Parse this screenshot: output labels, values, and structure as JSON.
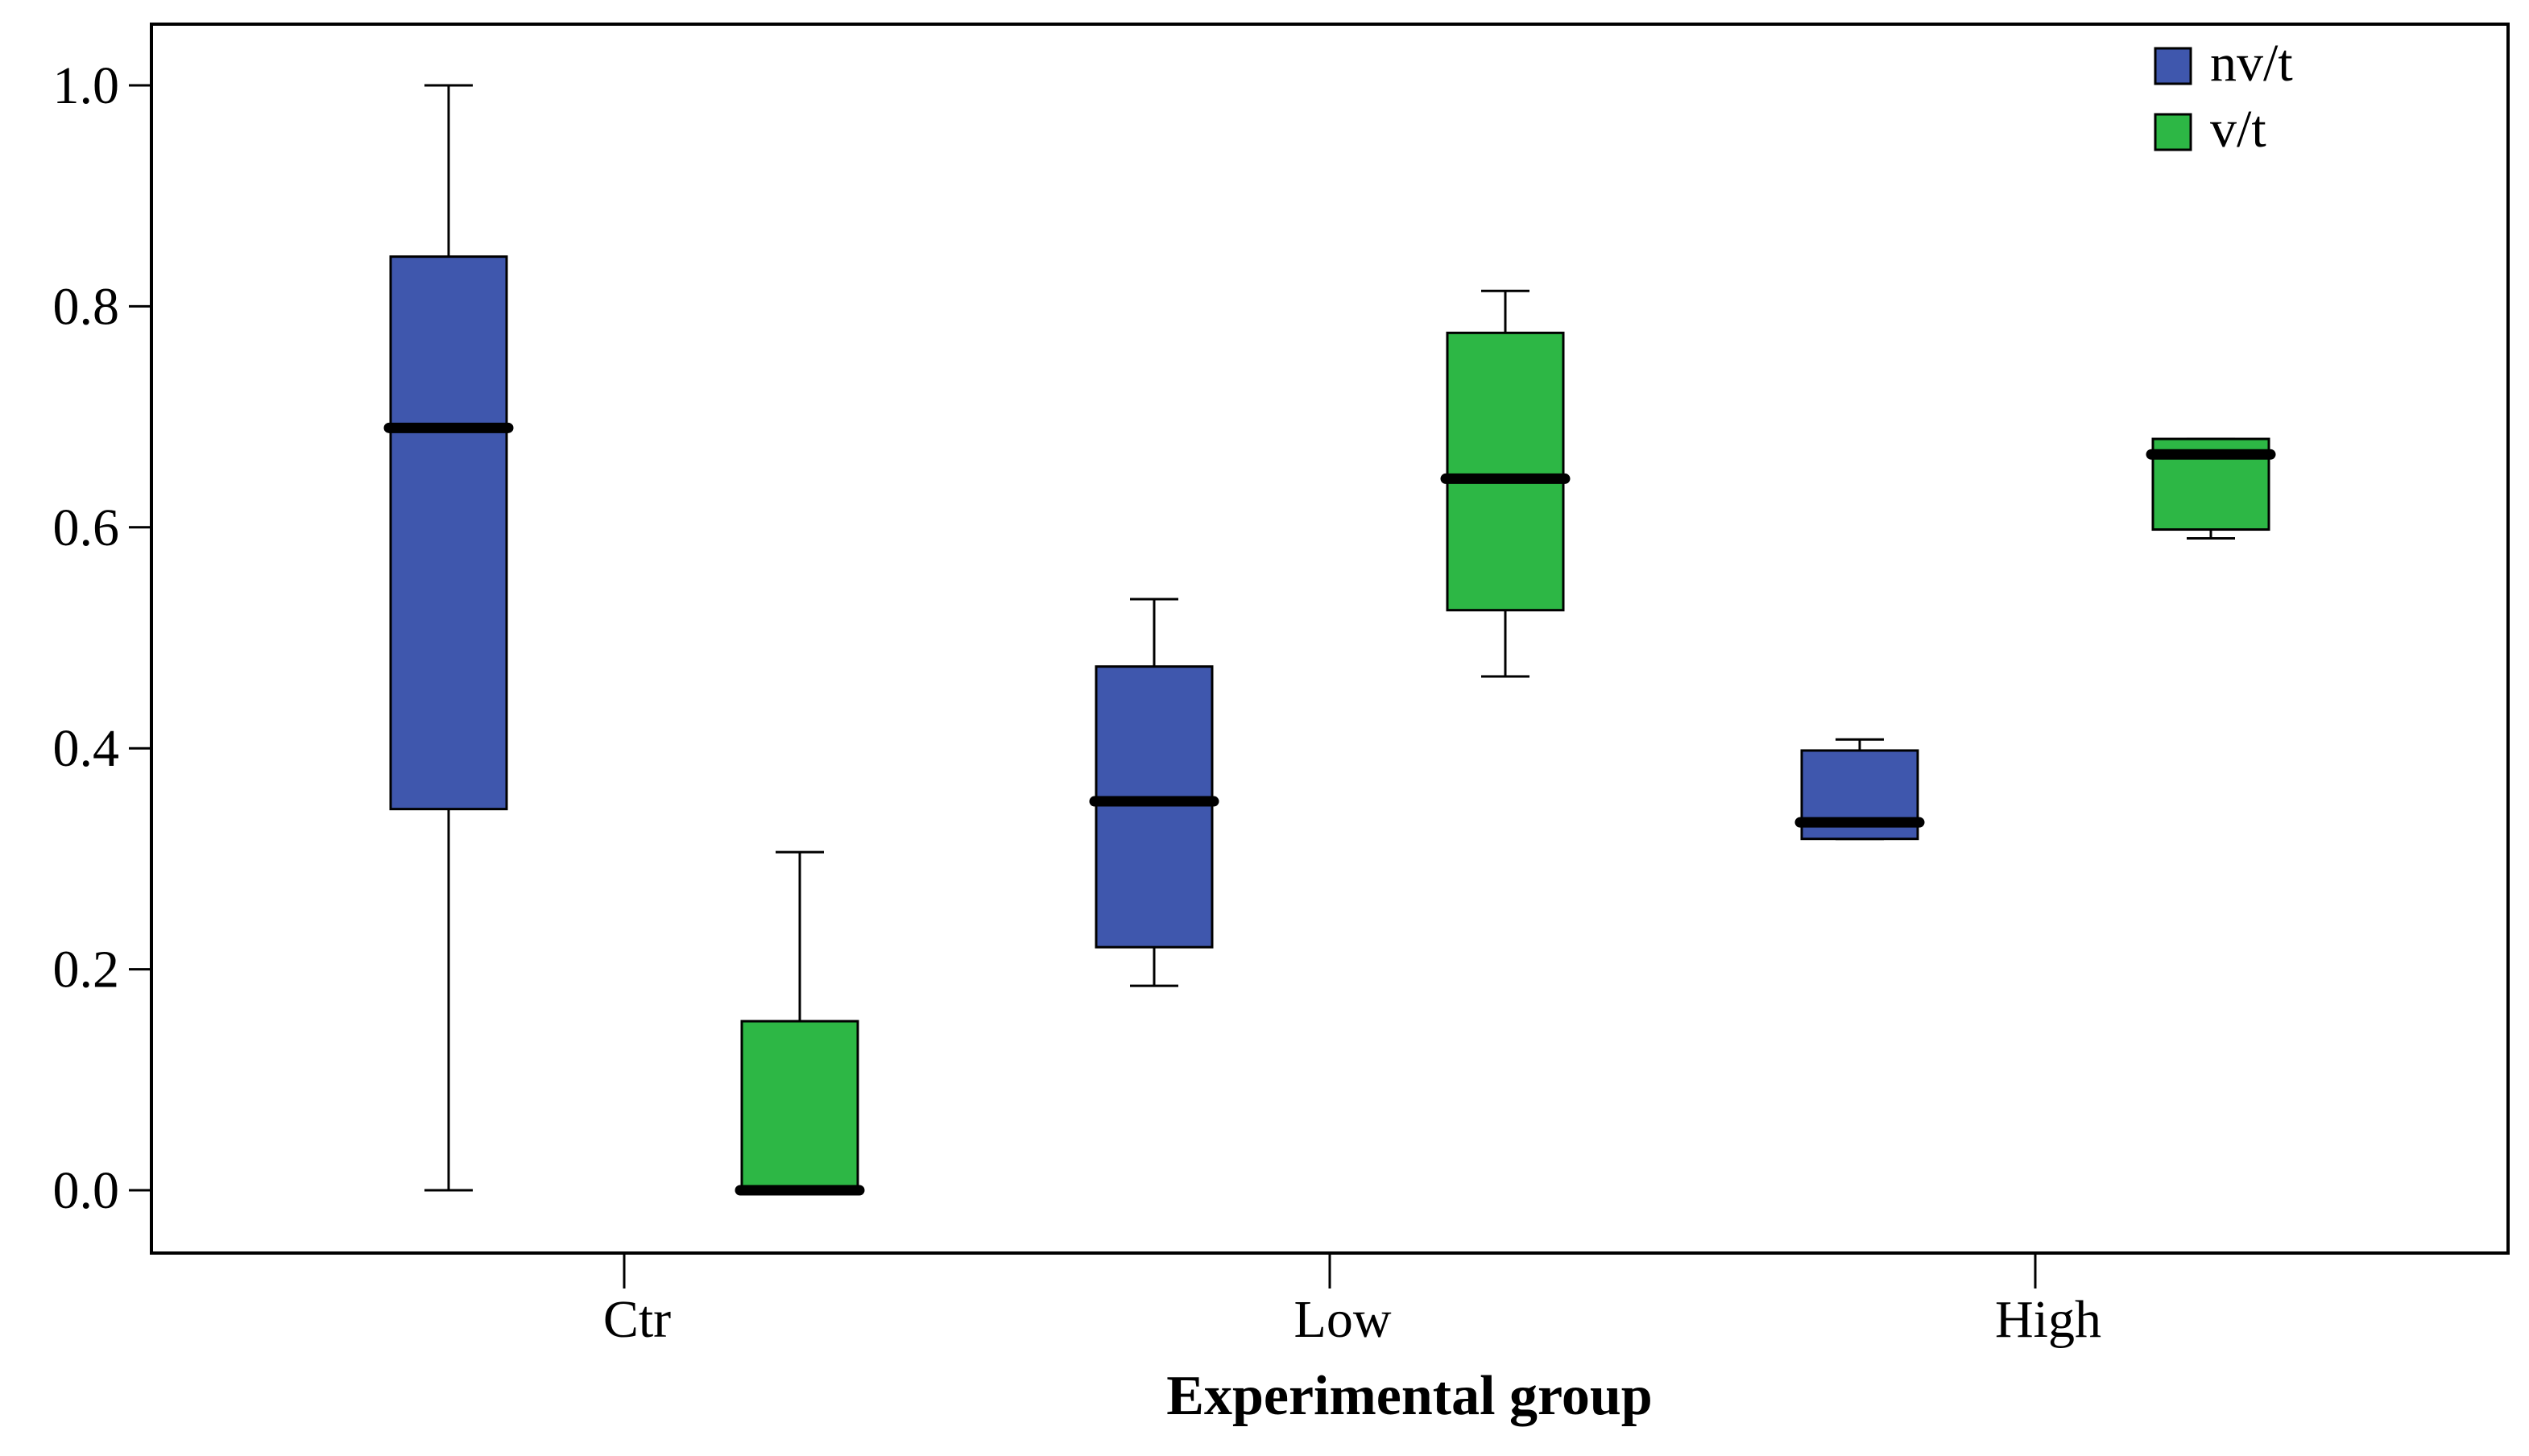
{
  "chart_data": {
    "type": "boxplot",
    "title": "",
    "xlabel": "Experimental group",
    "ylabel": "",
    "categories": [
      "Ctr",
      "Low",
      "High"
    ],
    "ylim": [
      -0.055,
      1.055
    ],
    "yticks": [
      0.0,
      0.2,
      0.4,
      0.6,
      0.8,
      1.0
    ],
    "ytick_labels": [
      "0.0",
      "0.2",
      "0.4",
      "0.6",
      "0.8",
      "1.0"
    ],
    "grid": false,
    "legend_position": "top-right",
    "series": [
      {
        "name": "nv/t",
        "color": "#3f57ad",
        "boxes": [
          {
            "category": "Ctr",
            "whisker_low": 0.0,
            "q1": 0.345,
            "median": 0.69,
            "q3": 0.845,
            "whisker_high": 1.0
          },
          {
            "category": "Low",
            "whisker_low": 0.185,
            "q1": 0.22,
            "median": 0.352,
            "q3": 0.474,
            "whisker_high": 0.535
          },
          {
            "category": "High",
            "whisker_low": 0.318,
            "q1": 0.318,
            "median": 0.333,
            "q3": 0.398,
            "whisker_high": 0.408
          }
        ]
      },
      {
        "name": "v/t",
        "color": "#2db745",
        "boxes": [
          {
            "category": "Ctr",
            "whisker_low": 0.0,
            "q1": 0.0,
            "median": 0.0,
            "q3": 0.153,
            "whisker_high": 0.306
          },
          {
            "category": "Low",
            "whisker_low": 0.465,
            "q1": 0.525,
            "median": 0.644,
            "q3": 0.776,
            "whisker_high": 0.814
          },
          {
            "category": "High",
            "whisker_low": 0.59,
            "q1": 0.598,
            "median": 0.666,
            "q3": 0.68,
            "whisker_high": 0.68
          }
        ]
      }
    ]
  }
}
